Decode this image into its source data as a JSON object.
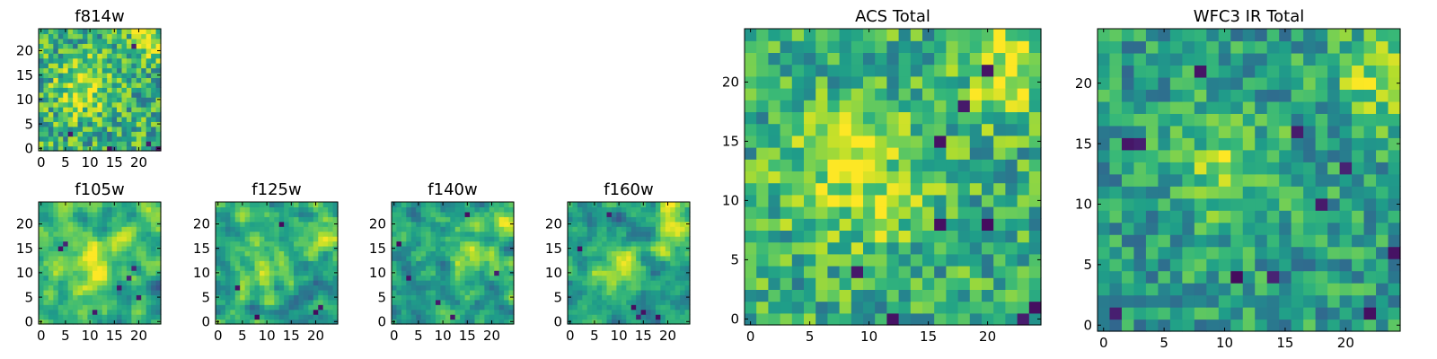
{
  "colors": {
    "colormap": "viridis",
    "low": "#440154",
    "high": "#fde725",
    "frame": "#000000",
    "background": "#ffffff"
  },
  "chart_data": [
    {
      "type": "heatmap",
      "id": "f814w",
      "title": "f814w",
      "grid_size": 25,
      "xlim": [
        0,
        25
      ],
      "ylim": [
        0,
        25
      ],
      "xticks": [
        0,
        5,
        10,
        15,
        20
      ],
      "yticks": [
        0,
        5,
        10,
        15,
        20
      ],
      "value_range": [
        0,
        1
      ],
      "mean_level": 0.62,
      "noise": 0.28,
      "smooth": 0,
      "bright_spots": [
        {
          "x": 22,
          "y": 22,
          "r": 3
        },
        {
          "x": 9,
          "y": 12,
          "r": 4
        }
      ],
      "dark_pixels": [
        {
          "x": 22,
          "y": 1
        },
        {
          "x": 14,
          "y": 0
        },
        {
          "x": 19,
          "y": 21
        },
        {
          "x": 6,
          "y": 3
        },
        {
          "x": 24,
          "y": 0
        }
      ]
    },
    {
      "type": "heatmap",
      "id": "f105w",
      "title": "f105w",
      "grid_size": 25,
      "xlim": [
        0,
        25
      ],
      "ylim": [
        0,
        25
      ],
      "xticks": [
        0,
        5,
        10,
        15,
        20
      ],
      "yticks": [
        0,
        5,
        10,
        15,
        20
      ],
      "value_range": [
        0,
        1
      ],
      "mean_level": 0.6,
      "noise": 0.24,
      "smooth": 1,
      "bright_spots": [
        {
          "x": 23,
          "y": 22,
          "r": 3
        },
        {
          "x": 9,
          "y": 11,
          "r": 5
        }
      ],
      "dark_pixels": [
        {
          "x": 4,
          "y": 15
        },
        {
          "x": 5,
          "y": 16
        },
        {
          "x": 19,
          "y": 11
        },
        {
          "x": 18,
          "y": 9
        },
        {
          "x": 11,
          "y": 2
        },
        {
          "x": 20,
          "y": 5
        },
        {
          "x": 16,
          "y": 7
        }
      ]
    },
    {
      "type": "heatmap",
      "id": "f125w",
      "title": "f125w",
      "grid_size": 25,
      "xlim": [
        0,
        25
      ],
      "ylim": [
        0,
        25
      ],
      "xticks": [
        0,
        5,
        10,
        15,
        20
      ],
      "yticks": [
        0,
        5,
        10,
        15,
        20
      ],
      "value_range": [
        0,
        1
      ],
      "mean_level": 0.55,
      "noise": 0.26,
      "smooth": 1,
      "bright_spots": [
        {
          "x": 22,
          "y": 18,
          "r": 3
        },
        {
          "x": 9,
          "y": 11,
          "r": 4
        }
      ],
      "dark_pixels": [
        {
          "x": 8,
          "y": 1
        },
        {
          "x": 20,
          "y": 2
        },
        {
          "x": 21,
          "y": 3
        },
        {
          "x": 13,
          "y": 20
        },
        {
          "x": 4,
          "y": 7
        }
      ]
    },
    {
      "type": "heatmap",
      "id": "f140w",
      "title": "f140w",
      "grid_size": 25,
      "xlim": [
        0,
        25
      ],
      "ylim": [
        0,
        25
      ],
      "xticks": [
        0,
        5,
        10,
        15,
        20
      ],
      "yticks": [
        0,
        5,
        10,
        15,
        20
      ],
      "value_range": [
        0,
        1
      ],
      "mean_level": 0.55,
      "noise": 0.26,
      "smooth": 1,
      "bright_spots": [
        {
          "x": 16,
          "y": 13,
          "r": 4
        },
        {
          "x": 23,
          "y": 21,
          "r": 3
        }
      ],
      "dark_pixels": [
        {
          "x": 1,
          "y": 16
        },
        {
          "x": 15,
          "y": 22
        },
        {
          "x": 9,
          "y": 4
        },
        {
          "x": 21,
          "y": 10
        },
        {
          "x": 12,
          "y": 1
        },
        {
          "x": 3,
          "y": 9
        }
      ]
    },
    {
      "type": "heatmap",
      "id": "f160w",
      "title": "f160w",
      "grid_size": 25,
      "xlim": [
        0,
        25
      ],
      "ylim": [
        0,
        25
      ],
      "xticks": [
        0,
        5,
        10,
        15,
        20
      ],
      "yticks": [
        0,
        5,
        10,
        15,
        20
      ],
      "value_range": [
        0,
        1
      ],
      "mean_level": 0.55,
      "noise": 0.24,
      "smooth": 1,
      "bright_spots": [
        {
          "x": 22,
          "y": 19,
          "r": 4
        },
        {
          "x": 10,
          "y": 10,
          "r": 4
        }
      ],
      "dark_pixels": [
        {
          "x": 14,
          "y": 1
        },
        {
          "x": 15,
          "y": 2
        },
        {
          "x": 13,
          "y": 3
        },
        {
          "x": 2,
          "y": 15
        },
        {
          "x": 8,
          "y": 22
        },
        {
          "x": 18,
          "y": 1
        }
      ]
    },
    {
      "type": "heatmap",
      "id": "acs_total",
      "title": "ACS Total",
      "grid_size": 25,
      "xlim": [
        0,
        25
      ],
      "ylim": [
        0,
        25
      ],
      "xticks": [
        0,
        5,
        10,
        15,
        20
      ],
      "yticks": [
        0,
        5,
        10,
        15,
        20
      ],
      "value_range": [
        0,
        1
      ],
      "mean_level": 0.62,
      "noise": 0.24,
      "smooth": 0,
      "bright_spots": [
        {
          "x": 9,
          "y": 12,
          "r": 4
        },
        {
          "x": 22,
          "y": 21,
          "r": 3
        }
      ],
      "dark_pixels": [
        {
          "x": 20,
          "y": 21
        },
        {
          "x": 18,
          "y": 18
        },
        {
          "x": 16,
          "y": 15
        },
        {
          "x": 9,
          "y": 4
        },
        {
          "x": 12,
          "y": 0
        },
        {
          "x": 23,
          "y": 0
        },
        {
          "x": 24,
          "y": 1
        },
        {
          "x": 20,
          "y": 8
        },
        {
          "x": 16,
          "y": 8
        }
      ]
    },
    {
      "type": "heatmap",
      "id": "wfc3_ir_total",
      "title": "WFC3 IR Total",
      "grid_size": 25,
      "xlim": [
        0,
        25
      ],
      "ylim": [
        0,
        25
      ],
      "xticks": [
        0,
        5,
        10,
        15,
        20
      ],
      "yticks": [
        0,
        5,
        10,
        15,
        20
      ],
      "value_range": [
        0,
        1
      ],
      "mean_level": 0.55,
      "noise": 0.22,
      "smooth": 0,
      "bright_spots": [
        {
          "x": 23,
          "y": 21,
          "r": 3
        },
        {
          "x": 10,
          "y": 13,
          "r": 3
        }
      ],
      "dark_pixels": [
        {
          "x": 2,
          "y": 15
        },
        {
          "x": 3,
          "y": 15
        },
        {
          "x": 8,
          "y": 21
        },
        {
          "x": 16,
          "y": 16
        },
        {
          "x": 18,
          "y": 10
        },
        {
          "x": 11,
          "y": 4
        },
        {
          "x": 1,
          "y": 1
        },
        {
          "x": 20,
          "y": 13
        },
        {
          "x": 22,
          "y": 1
        },
        {
          "x": 24,
          "y": 6
        },
        {
          "x": 14,
          "y": 4
        }
      ]
    }
  ]
}
